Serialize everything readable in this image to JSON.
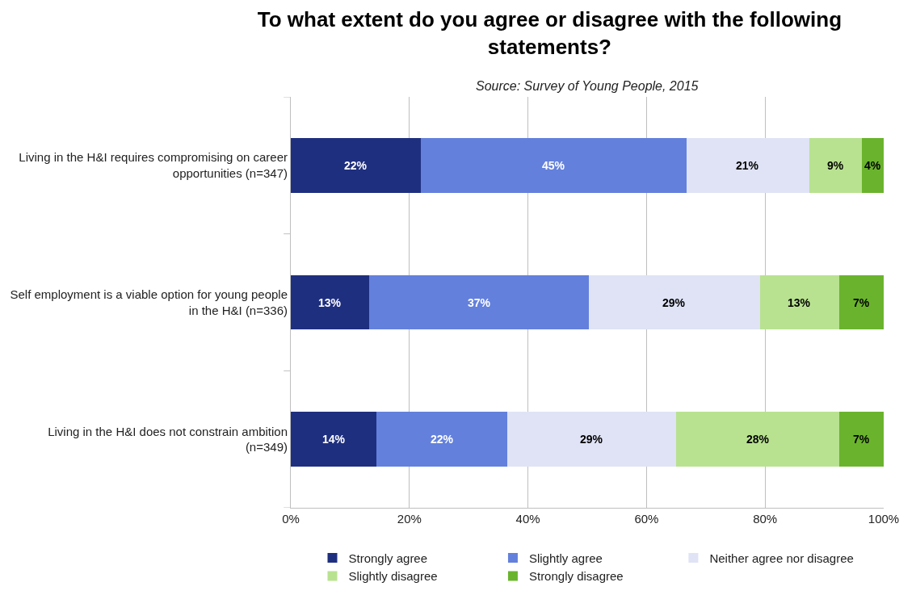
{
  "chart_data": {
    "type": "bar",
    "orientation": "horizontal",
    "stacked": true,
    "title": "To what extent do you agree or disagree with the following statements?",
    "subtitle": "Source: Survey of Young People, 2015",
    "categories": [
      "Living in the H&I requires compromising on career opportunities (n=347)",
      "Self employment is a viable option for young people in the H&I (n=336)",
      "Living in the H&I does not constrain ambition (n=349)"
    ],
    "series": [
      {
        "name": "Strongly agree",
        "color": "#1f2f7f",
        "values": [
          22.0,
          13.2,
          14.5
        ],
        "value_labels": [
          "22%",
          "13%",
          "14%"
        ]
      },
      {
        "name": "Slightly agree",
        "color": "#6380dc",
        "values": [
          44.7,
          37.1,
          22.0
        ],
        "value_labels": [
          "45%",
          "37%",
          "22%"
        ]
      },
      {
        "name": "Neither agree nor disagree",
        "color": "#dfe3f5",
        "values": [
          20.7,
          28.8,
          28.5
        ],
        "value_labels": [
          "21%",
          "29%",
          "29%"
        ]
      },
      {
        "name": "Slightly disagree",
        "color": "#b8e290",
        "values": [
          8.9,
          13.4,
          27.5
        ],
        "value_labels": [
          "9%",
          "13%",
          "28%"
        ]
      },
      {
        "name": "Strongly disagree",
        "color": "#6ab42d",
        "values": [
          3.7,
          7.5,
          7.5
        ],
        "value_labels": [
          "4%",
          "7%",
          "7%"
        ]
      }
    ],
    "xlim": [
      0,
      100
    ],
    "xticks": [
      {
        "value": 0,
        "label": "0%"
      },
      {
        "value": 20,
        "label": "20%"
      },
      {
        "value": 40,
        "label": "40%"
      },
      {
        "value": 60,
        "label": "60%"
      },
      {
        "value": 80,
        "label": "80%"
      },
      {
        "value": 100,
        "label": "100%"
      }
    ],
    "grid": "x",
    "legend": "bottom"
  }
}
